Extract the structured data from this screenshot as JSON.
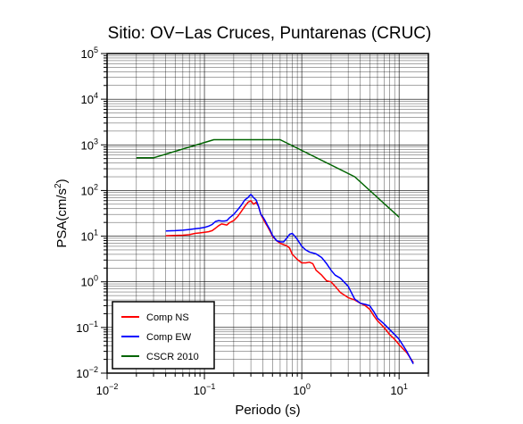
{
  "chart_data": {
    "type": "line",
    "title": "Sitio: OV−Las Cruces, Puntarenas (CRUC)",
    "xlabel": "Periodo (s)",
    "ylabel_main": "PSA(cm/s",
    "ylabel_sup": "2",
    "ylabel_end": ")",
    "xscale": "log",
    "yscale": "log",
    "xlim": [
      0.01,
      20
    ],
    "ylim": [
      0.01,
      100000
    ],
    "grid": true,
    "legend_position": "bottom-left",
    "x_ticks": [
      {
        "value": 0.01,
        "base": "10",
        "exp": "−2"
      },
      {
        "value": 0.1,
        "base": "10",
        "exp": "−1"
      },
      {
        "value": 1,
        "base": "10",
        "exp": "0"
      },
      {
        "value": 10,
        "base": "10",
        "exp": "1"
      }
    ],
    "y_ticks": [
      {
        "value": 0.01,
        "base": "10",
        "exp": "−2"
      },
      {
        "value": 0.1,
        "base": "10",
        "exp": "−1"
      },
      {
        "value": 1,
        "base": "10",
        "exp": "0"
      },
      {
        "value": 10,
        "base": "10",
        "exp": "1"
      },
      {
        "value": 100,
        "base": "10",
        "exp": "2"
      },
      {
        "value": 1000,
        "base": "10",
        "exp": "3"
      },
      {
        "value": 10000,
        "base": "10",
        "exp": "4"
      },
      {
        "value": 100000,
        "base": "10",
        "exp": "5"
      }
    ],
    "series": [
      {
        "name": "Comp NS",
        "color": "#ff0000",
        "points": [
          [
            0.04,
            10.2
          ],
          [
            0.05,
            10.4
          ],
          [
            0.06,
            10.5
          ],
          [
            0.07,
            10.8
          ],
          [
            0.08,
            11.5
          ],
          [
            0.09,
            11.8
          ],
          [
            0.1,
            12.2
          ],
          [
            0.11,
            12.5
          ],
          [
            0.12,
            13.2
          ],
          [
            0.13,
            15
          ],
          [
            0.14,
            17
          ],
          [
            0.15,
            18.5
          ],
          [
            0.16,
            18
          ],
          [
            0.17,
            17.5
          ],
          [
            0.18,
            19.5
          ],
          [
            0.2,
            22
          ],
          [
            0.22,
            27
          ],
          [
            0.24,
            35
          ],
          [
            0.26,
            45
          ],
          [
            0.28,
            55
          ],
          [
            0.3,
            60
          ],
          [
            0.32,
            50
          ],
          [
            0.34,
            55
          ],
          [
            0.36,
            45
          ],
          [
            0.38,
            30
          ],
          [
            0.4,
            24
          ],
          [
            0.42,
            20
          ],
          [
            0.44,
            17
          ],
          [
            0.47,
            13
          ],
          [
            0.5,
            10
          ],
          [
            0.55,
            8
          ],
          [
            0.6,
            7
          ],
          [
            0.65,
            6.5
          ],
          [
            0.7,
            6.2
          ],
          [
            0.75,
            5.5
          ],
          [
            0.8,
            4
          ],
          [
            0.9,
            3.1
          ],
          [
            1.0,
            2.6
          ],
          [
            1.1,
            2.6
          ],
          [
            1.2,
            2.7
          ],
          [
            1.3,
            2.5
          ],
          [
            1.4,
            1.8
          ],
          [
            1.6,
            1.4
          ],
          [
            1.8,
            1.05
          ],
          [
            2.0,
            1.0
          ],
          [
            2.2,
            0.8
          ],
          [
            2.5,
            0.58
          ],
          [
            3.0,
            0.45
          ],
          [
            3.5,
            0.4
          ],
          [
            4.0,
            0.34
          ],
          [
            4.5,
            0.3
          ],
          [
            5.0,
            0.25
          ],
          [
            5.5,
            0.18
          ],
          [
            6.0,
            0.14
          ],
          [
            7.0,
            0.1
          ],
          [
            8.0,
            0.07
          ],
          [
            9.0,
            0.055
          ],
          [
            10.0,
            0.042
          ],
          [
            12.0,
            0.028
          ],
          [
            14.0,
            0.017
          ]
        ]
      },
      {
        "name": "Comp EW",
        "color": "#0000ff",
        "points": [
          [
            0.04,
            13
          ],
          [
            0.05,
            13.2
          ],
          [
            0.06,
            13.5
          ],
          [
            0.07,
            14
          ],
          [
            0.08,
            14.5
          ],
          [
            0.09,
            15
          ],
          [
            0.1,
            15.5
          ],
          [
            0.11,
            16.5
          ],
          [
            0.12,
            18
          ],
          [
            0.13,
            21
          ],
          [
            0.14,
            22
          ],
          [
            0.15,
            21.5
          ],
          [
            0.16,
            21.5
          ],
          [
            0.17,
            22
          ],
          [
            0.18,
            25
          ],
          [
            0.2,
            30
          ],
          [
            0.22,
            38
          ],
          [
            0.24,
            48
          ],
          [
            0.26,
            62
          ],
          [
            0.28,
            70
          ],
          [
            0.3,
            82
          ],
          [
            0.32,
            70
          ],
          [
            0.34,
            62
          ],
          [
            0.36,
            45
          ],
          [
            0.38,
            30
          ],
          [
            0.4,
            26
          ],
          [
            0.42,
            22
          ],
          [
            0.44,
            18
          ],
          [
            0.47,
            14
          ],
          [
            0.5,
            10.5
          ],
          [
            0.55,
            8
          ],
          [
            0.6,
            7.5
          ],
          [
            0.65,
            7.5
          ],
          [
            0.7,
            9
          ],
          [
            0.75,
            11
          ],
          [
            0.8,
            11.5
          ],
          [
            0.85,
            10
          ],
          [
            0.9,
            8.5
          ],
          [
            1.0,
            6
          ],
          [
            1.1,
            5
          ],
          [
            1.2,
            4.5
          ],
          [
            1.4,
            4.1
          ],
          [
            1.6,
            3.4
          ],
          [
            1.8,
            2.5
          ],
          [
            2.0,
            1.8
          ],
          [
            2.2,
            1.4
          ],
          [
            2.5,
            1.2
          ],
          [
            3.0,
            0.8
          ],
          [
            3.5,
            0.42
          ],
          [
            4.0,
            0.34
          ],
          [
            4.5,
            0.32
          ],
          [
            5.0,
            0.3
          ],
          [
            5.5,
            0.22
          ],
          [
            6.0,
            0.16
          ],
          [
            7.0,
            0.12
          ],
          [
            8.0,
            0.09
          ],
          [
            9.0,
            0.07
          ],
          [
            10.0,
            0.055
          ],
          [
            12.0,
            0.03
          ],
          [
            14.0,
            0.016
          ]
        ]
      },
      {
        "name": "CSCR 2010",
        "color": "#006400",
        "points": [
          [
            0.02,
            520
          ],
          [
            0.03,
            520
          ],
          [
            0.125,
            1300
          ],
          [
            0.6,
            1300
          ],
          [
            3.5,
            200
          ],
          [
            10.0,
            26
          ]
        ]
      }
    ]
  }
}
